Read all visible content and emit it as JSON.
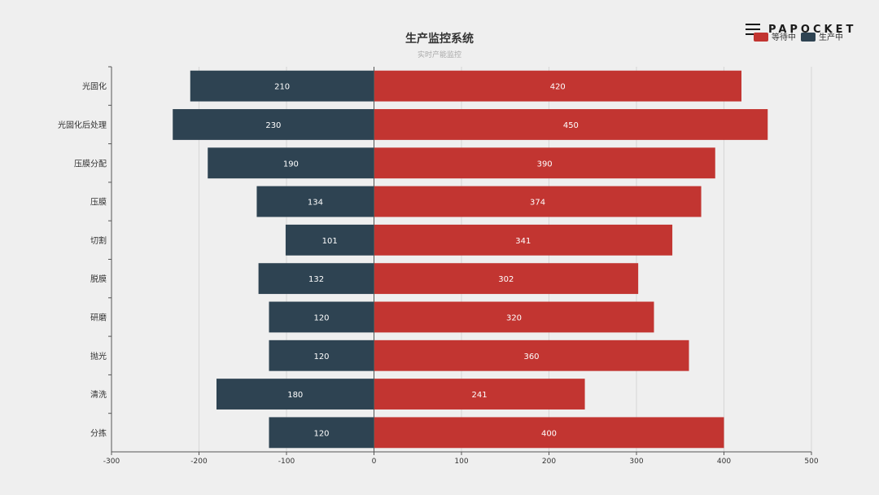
{
  "brand": {
    "name": "PAPOCKET",
    "icon": "menu-icon"
  },
  "chart_data": {
    "type": "bar",
    "orientation": "horizontal-diverging",
    "title": "生产监控系统",
    "subtitle": "实时产能监控",
    "categories": [
      "光固化",
      "光固化后处理",
      "压膜分配",
      "压膜",
      "切割",
      "脱膜",
      "研磨",
      "抛光",
      "清洗",
      "分拣"
    ],
    "series": [
      {
        "name": "生产中",
        "color": "#2e4352",
        "side": "negative",
        "values": [
          210,
          230,
          190,
          134,
          101,
          132,
          120,
          120,
          180,
          120
        ]
      },
      {
        "name": "等待中",
        "color": "#c23531",
        "side": "positive",
        "values": [
          420,
          450,
          390,
          374,
          341,
          302,
          320,
          360,
          241,
          400
        ]
      }
    ],
    "legend": {
      "placement": "top-right",
      "order": [
        "等待中",
        "生产中"
      ]
    },
    "xlim": [
      -300,
      500
    ],
    "xticks": [
      -300,
      -200,
      -100,
      0,
      100,
      200,
      300,
      400,
      500
    ],
    "grid": true
  }
}
